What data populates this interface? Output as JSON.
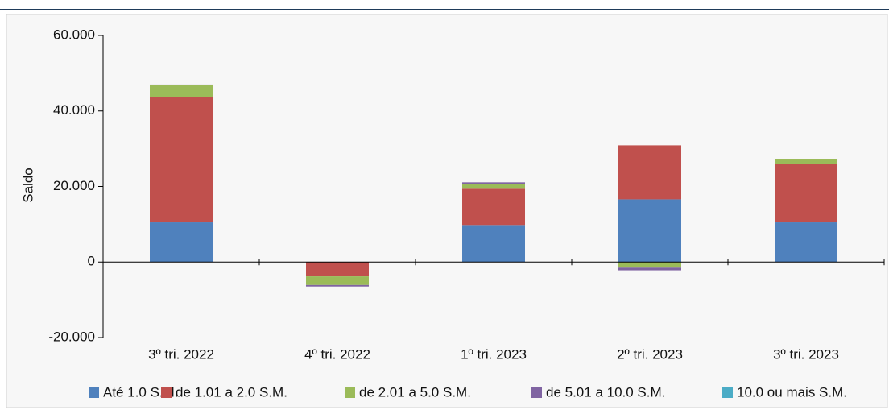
{
  "chart_data": {
    "type": "stacked_bar",
    "ylabel": "Saldo",
    "categories": [
      "3º tri. 2022",
      "4º tri. 2022",
      "1º tri. 2023",
      "2º tri. 2023",
      "3º tri. 2023"
    ],
    "series": [
      {
        "name": "Até 1.0 S.M.",
        "color": "#4f81bd",
        "values": [
          10500,
          0,
          9800,
          16600,
          10500
        ]
      },
      {
        "name": "de 1.01 a 2.0 S.M.",
        "color": "#c0504d",
        "values": [
          33100,
          -3800,
          9600,
          14300,
          15400
        ]
      },
      {
        "name": "de 2.01 a 5.0 S.M.",
        "color": "#9bbb59",
        "values": [
          3200,
          -2300,
          1300,
          -1500,
          1300
        ]
      },
      {
        "name": "de 5.01 a 10.0 S.M.",
        "color": "#8064a2",
        "values": [
          200,
          -400,
          400,
          -700,
          100
        ]
      },
      {
        "name": "10.0 ou mais S.M.",
        "color": "#4bacc6",
        "values": [
          0,
          0,
          0,
          0,
          0
        ]
      }
    ],
    "ylim": [
      -20000,
      60000
    ],
    "yticks": [
      {
        "value": -20000,
        "label": "-20.000"
      },
      0,
      {
        "value": 20000,
        "label": "20.000"
      },
      {
        "value": 40000,
        "label": "40.000"
      },
      {
        "value": 60000,
        "label": "60.000"
      }
    ],
    "legend": "bottom"
  }
}
